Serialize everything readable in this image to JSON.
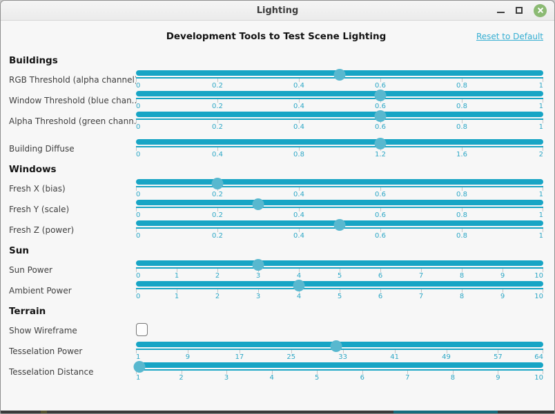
{
  "window": {
    "title": "Lighting",
    "buttons": [
      "minimize-icon",
      "maximize-icon",
      "close-icon"
    ]
  },
  "header": {
    "title": "Development Tools to Test Scene Lighting",
    "reset_link": "Reset to Default"
  },
  "colors": {
    "accent": "#17a5c5",
    "handle": "#58b8cf",
    "tick_label": "#2da7c6",
    "link": "#35aed2",
    "close_button": "#8bba73",
    "bottom_accent": "#156c7d"
  },
  "sections": [
    {
      "title": "Buildings",
      "rows": [
        {
          "type": "slider",
          "label": "RGB Threshold (alpha channel)",
          "min": 0,
          "max": 1,
          "value": 0.5,
          "tick_labels": [
            "0",
            "0.2",
            "0.4",
            "0.6",
            "0.8",
            "1"
          ],
          "tick_values": [
            0,
            0.2,
            0.4,
            0.6,
            0.8,
            1
          ]
        },
        {
          "type": "slider",
          "label": "Window Threshold (blue chan...",
          "min": 0,
          "max": 1,
          "value": 0.6,
          "tick_labels": [
            "0",
            "0.2",
            "0.4",
            "0.6",
            "0.8",
            "1"
          ],
          "tick_values": [
            0,
            0.2,
            0.4,
            0.6,
            0.8,
            1
          ]
        },
        {
          "type": "slider",
          "label": "Alpha Threshold (green chann...",
          "min": 0,
          "max": 1,
          "value": 0.6,
          "tick_labels": [
            "0",
            "0.2",
            "0.4",
            "0.6",
            "0.8",
            "1"
          ],
          "tick_values": [
            0,
            0.2,
            0.4,
            0.6,
            0.8,
            1
          ]
        },
        {
          "type": "slider",
          "label": "Building Diffuse",
          "min": 0,
          "max": 2,
          "value": 1.2,
          "tick_labels": [
            "0",
            "0.4",
            "0.8",
            "1.2",
            "1.6",
            "2"
          ],
          "tick_values": [
            0,
            0.4,
            0.8,
            1.2,
            1.6,
            2
          ]
        }
      ]
    },
    {
      "title": "Windows",
      "rows": [
        {
          "type": "slider",
          "label": "Fresh X (bias)",
          "min": 0,
          "max": 1,
          "value": 0.2,
          "tick_labels": [
            "0",
            "0.2",
            "0.4",
            "0.6",
            "0.8",
            "1"
          ],
          "tick_values": [
            0,
            0.2,
            0.4,
            0.6,
            0.8,
            1
          ]
        },
        {
          "type": "slider",
          "label": "Fresh Y (scale)",
          "min": 0,
          "max": 1,
          "value": 0.3,
          "tick_labels": [
            "0",
            "0.2",
            "0.4",
            "0.6",
            "0.8",
            "1"
          ],
          "tick_values": [
            0,
            0.2,
            0.4,
            0.6,
            0.8,
            1
          ]
        },
        {
          "type": "slider",
          "label": "Fresh Z (power)",
          "min": 0,
          "max": 1,
          "value": 0.5,
          "tick_labels": [
            "0",
            "0.2",
            "0.4",
            "0.6",
            "0.8",
            "1"
          ],
          "tick_values": [
            0,
            0.2,
            0.4,
            0.6,
            0.8,
            1
          ]
        }
      ]
    },
    {
      "title": "Sun",
      "rows": [
        {
          "type": "slider",
          "label": "Sun Power",
          "min": 0,
          "max": 10,
          "value": 3,
          "tick_labels": [
            "0",
            "1",
            "2",
            "3",
            "4",
            "5",
            "6",
            "7",
            "8",
            "9",
            "10"
          ],
          "tick_values": [
            0,
            1,
            2,
            3,
            4,
            5,
            6,
            7,
            8,
            9,
            10
          ]
        },
        {
          "type": "slider",
          "label": "Ambient Power",
          "min": 0,
          "max": 10,
          "value": 4,
          "tick_labels": [
            "0",
            "1",
            "2",
            "3",
            "4",
            "5",
            "6",
            "7",
            "8",
            "9",
            "10"
          ],
          "tick_values": [
            0,
            1,
            2,
            3,
            4,
            5,
            6,
            7,
            8,
            9,
            10
          ]
        }
      ]
    },
    {
      "title": "Terrain",
      "rows": [
        {
          "type": "checkbox",
          "label": "Show Wireframe",
          "checked": false
        },
        {
          "type": "slider",
          "label": "Tesselation Power",
          "min": 1,
          "max": 64,
          "value": 32,
          "tick_labels": [
            "1",
            "9",
            "17",
            "25",
            "33",
            "41",
            "49",
            "57",
            "64"
          ],
          "tick_values": [
            1,
            9,
            17,
            25,
            33,
            41,
            49,
            57,
            64
          ]
        },
        {
          "type": "slider",
          "label": "Tesselation Distance",
          "min": 1,
          "max": 10,
          "value": 1,
          "tick_labels": [
            "1",
            "2",
            "3",
            "4",
            "5",
            "6",
            "7",
            "8",
            "9",
            "10"
          ],
          "tick_values": [
            1,
            2,
            3,
            4,
            5,
            6,
            7,
            8,
            9,
            10
          ]
        }
      ]
    }
  ]
}
